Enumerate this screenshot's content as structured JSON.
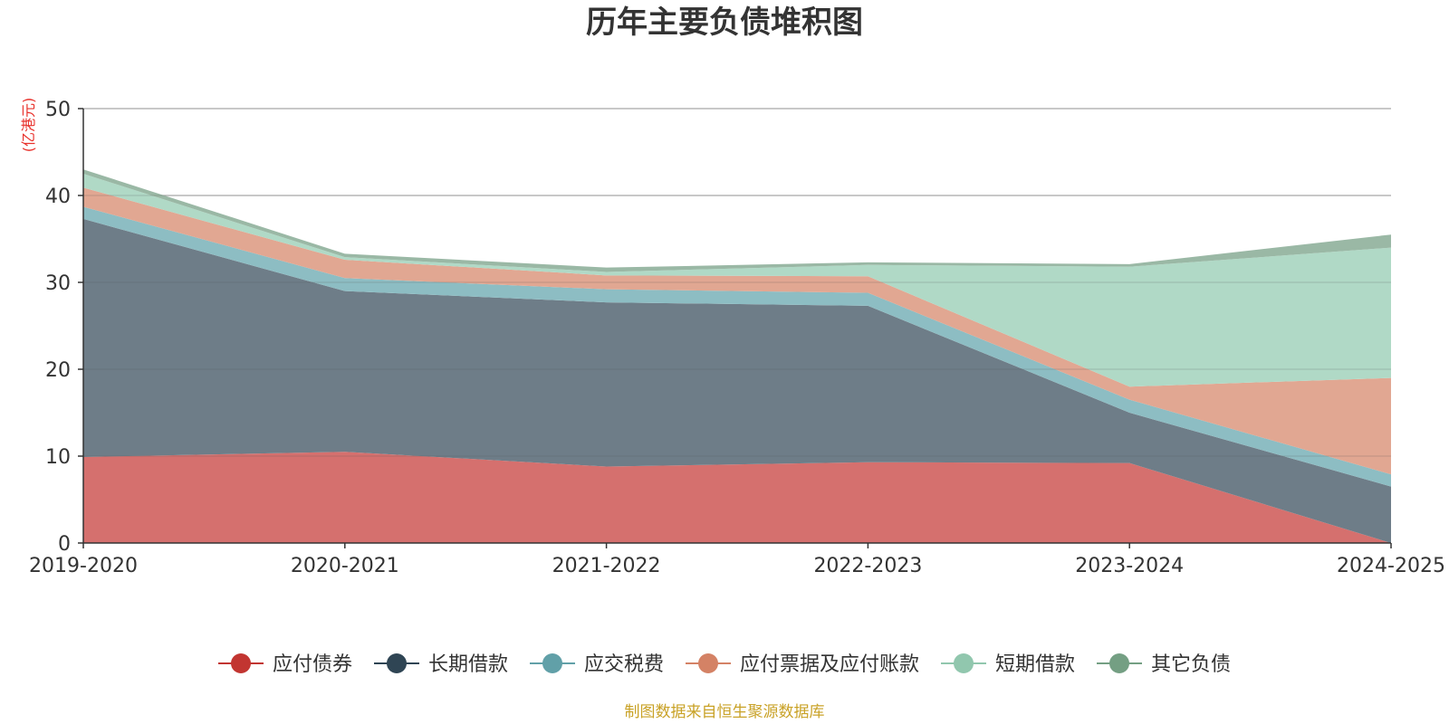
{
  "chart_data": {
    "type": "area",
    "stacked": true,
    "title": "历年主要负债堆积图",
    "unit_label": "(亿港元)",
    "unit_color": "#e8302a",
    "categories": [
      "2019-2020",
      "2020-2021",
      "2021-2022",
      "2022-2023",
      "2023-2024",
      "2024-2025"
    ],
    "ylim": [
      0,
      50
    ],
    "yticks": [
      0,
      10,
      20,
      30,
      40,
      50
    ],
    "grid": true,
    "legend_position": "bottom",
    "series": [
      {
        "name": "应付债券",
        "color": "#c23531",
        "fill": "#d5706e",
        "values": [
          9.9,
          10.5,
          8.8,
          9.3,
          9.2,
          0.0
        ]
      },
      {
        "name": "长期借款",
        "color": "#2f4554",
        "fill": "#6e7d88",
        "values": [
          27.4,
          18.5,
          18.9,
          18.0,
          5.8,
          6.5
        ]
      },
      {
        "name": "应交税费",
        "color": "#61a0a8",
        "fill": "#8dbdc3",
        "values": [
          1.4,
          1.5,
          1.5,
          1.5,
          1.5,
          1.4
        ]
      },
      {
        "name": "应付票据及应付账款",
        "color": "#d48265",
        "fill": "#e1a792",
        "values": [
          2.2,
          2.1,
          1.6,
          1.9,
          1.5,
          11.1
        ]
      },
      {
        "name": "短期借款",
        "color": "#91c7ae",
        "fill": "#b0d9c6",
        "values": [
          1.6,
          0.3,
          0.4,
          1.3,
          13.8,
          15.0
        ]
      },
      {
        "name": "其它负债",
        "color": "#749f83",
        "fill": "#9ab8a5",
        "values": [
          0.5,
          0.4,
          0.5,
          0.3,
          0.3,
          1.5
        ]
      }
    ]
  },
  "footer": {
    "source": "制图数据来自恒生聚源数据库",
    "source_color": "#c9a227"
  }
}
